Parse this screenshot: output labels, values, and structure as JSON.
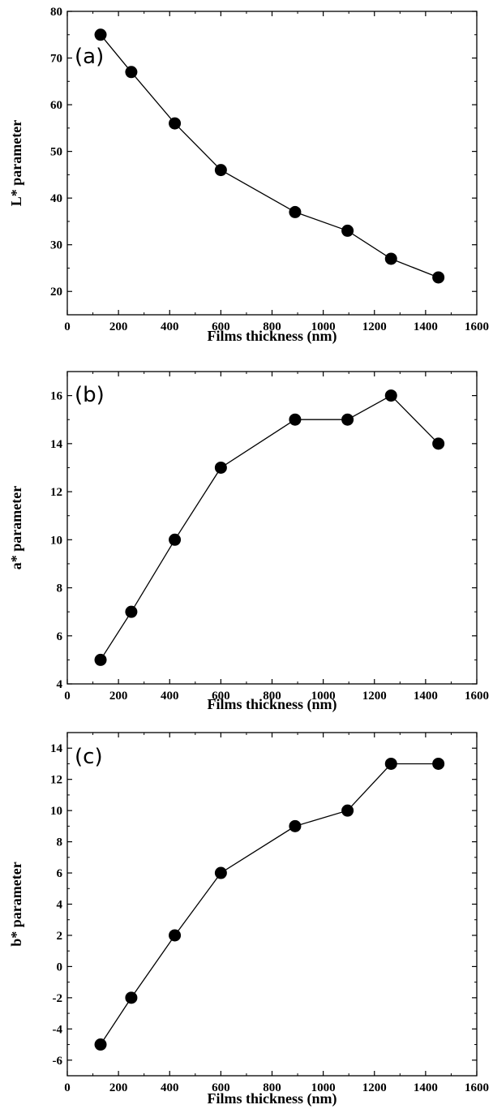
{
  "chart_data": [
    {
      "type": "line",
      "panel_label": "(a)",
      "xlabel": "Films thickness  (nm)",
      "ylabel": "L* parameter",
      "xlim": [
        0,
        1600
      ],
      "ylim": [
        15,
        80
      ],
      "xticks": [
        0,
        200,
        400,
        600,
        800,
        1000,
        1200,
        1400,
        1600
      ],
      "yticks": [
        20,
        30,
        40,
        50,
        60,
        70,
        80
      ],
      "grid": false,
      "markers": "filled-circle",
      "series": [
        {
          "x": [
            130,
            250,
            420,
            600,
            890,
            1095,
            1265,
            1450
          ],
          "y": [
            75,
            67,
            56,
            46,
            37,
            33,
            27,
            23
          ]
        }
      ]
    },
    {
      "type": "line",
      "panel_label": "(b)",
      "xlabel": "Films thickness  (nm)",
      "ylabel": "a* parameter",
      "xlim": [
        0,
        1600
      ],
      "ylim": [
        4,
        17
      ],
      "xticks": [
        0,
        200,
        400,
        600,
        800,
        1000,
        1200,
        1400,
        1600
      ],
      "yticks": [
        4,
        6,
        8,
        10,
        12,
        14,
        16
      ],
      "grid": false,
      "markers": "filled-circle",
      "series": [
        {
          "x": [
            130,
            250,
            420,
            600,
            890,
            1095,
            1265,
            1450
          ],
          "y": [
            5,
            7,
            10,
            13,
            15,
            15,
            16,
            14
          ]
        }
      ]
    },
    {
      "type": "line",
      "panel_label": "(c)",
      "xlabel": "Films thickness  (nm)",
      "ylabel": "b* parameter",
      "xlim": [
        0,
        1600
      ],
      "ylim": [
        -7,
        15
      ],
      "xticks": [
        0,
        200,
        400,
        600,
        800,
        1000,
        1200,
        1400,
        1600
      ],
      "yticks": [
        -6,
        -4,
        -2,
        0,
        2,
        4,
        6,
        8,
        10,
        12,
        14
      ],
      "grid": false,
      "markers": "filled-circle",
      "series": [
        {
          "x": [
            130,
            250,
            420,
            600,
            890,
            1095,
            1265,
            1450
          ],
          "y": [
            -5,
            -2,
            2,
            6,
            9,
            10,
            13,
            13
          ]
        }
      ]
    }
  ]
}
